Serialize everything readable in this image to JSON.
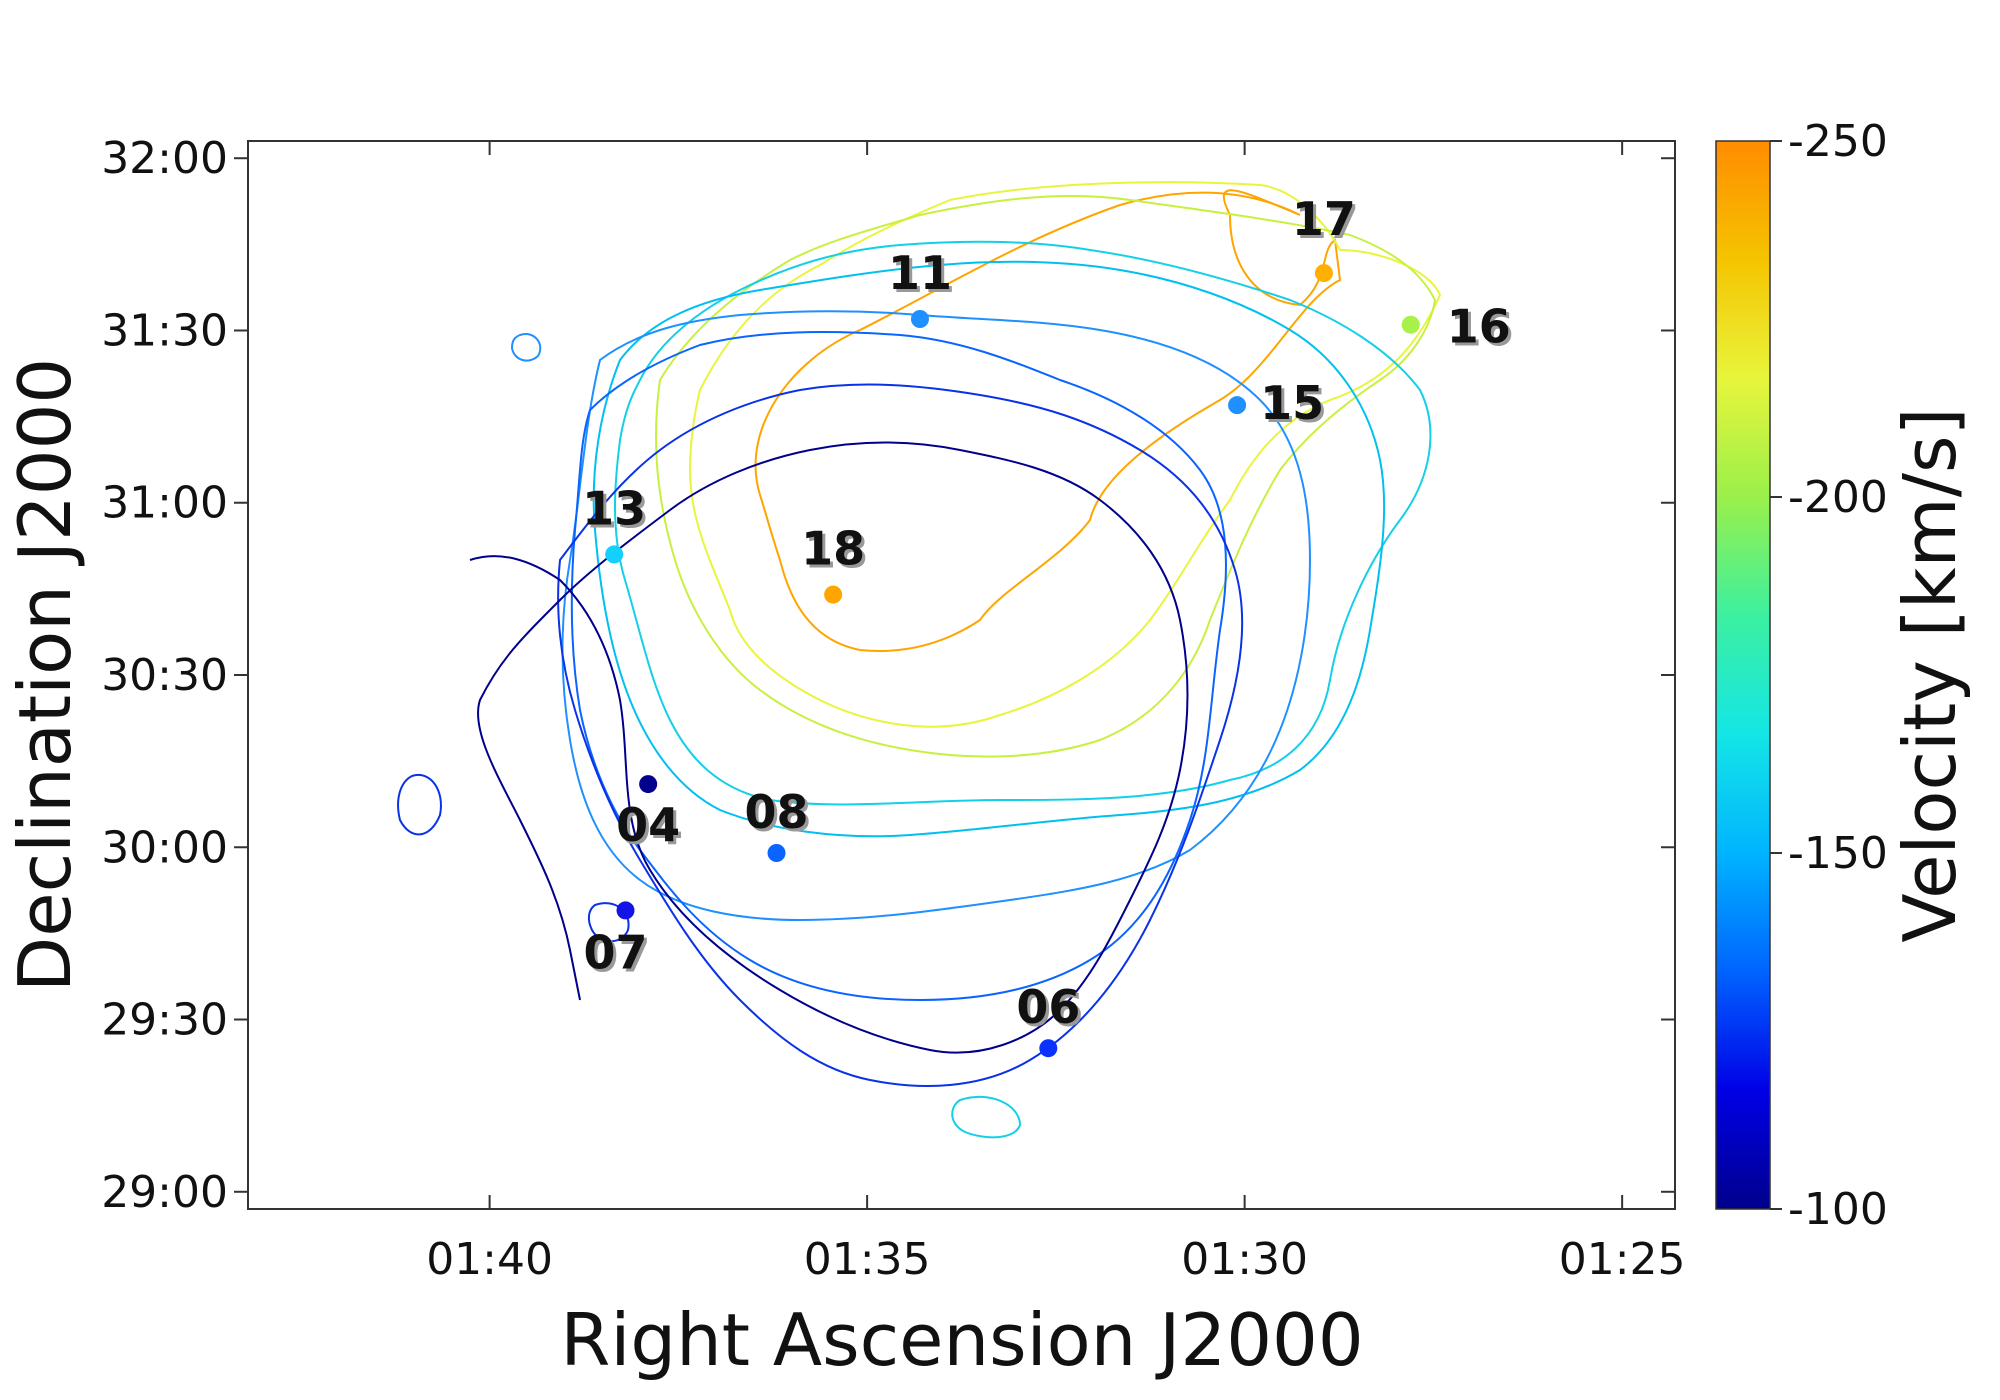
{
  "chart_data": {
    "type": "contour_map",
    "xlabel": "Right Ascension J2000",
    "ylabel": "Declination J2000",
    "x_ticks": [
      "01:40",
      "01:35",
      "01:30",
      "01:25"
    ],
    "x_tick_minutes": [
      100,
      95,
      90,
      85
    ],
    "xlim_minutes": [
      103.2,
      84.3
    ],
    "y_ticks": [
      "32:00",
      "31:30",
      "31:00",
      "30:30",
      "30:00",
      "29:30",
      "29:00"
    ],
    "y_tick_arcmin": [
      1920,
      1890,
      1860,
      1830,
      1800,
      1770,
      1740
    ],
    "ylim_arcmin": [
      1737,
      1923
    ],
    "colorbar": {
      "label": "Velocity [km/s]",
      "ticks": [
        "-250",
        "-200",
        "-150",
        "-100"
      ],
      "tick_values": [
        -250,
        -200,
        -150,
        -100
      ],
      "range": [
        -250,
        -100
      ],
      "colors": [
        "#FF8C00",
        "#F5C400",
        "#E8F53C",
        "#9AF04A",
        "#3CF0A0",
        "#14E6E6",
        "#00B4FF",
        "#0064FF",
        "#0000E6",
        "#00008C"
      ]
    },
    "sources": [
      {
        "label": "17",
        "ra_min": 88.95,
        "dec_arcmin": 1900,
        "velocity": -240,
        "color": "#FFB000"
      },
      {
        "label": "11",
        "ra_min": 94.3,
        "dec_arcmin": 1892,
        "velocity": -160,
        "color": "#1E90FF"
      },
      {
        "label": "16",
        "ra_min": 87.8,
        "dec_arcmin": 1891,
        "velocity": -212,
        "color": "#A8F04A"
      },
      {
        "label": "15",
        "ra_min": 90.1,
        "dec_arcmin": 1877,
        "velocity": -160,
        "color": "#1E90FF"
      },
      {
        "label": "13",
        "ra_min": 98.35,
        "dec_arcmin": 1851,
        "velocity": -170,
        "color": "#14D0FF"
      },
      {
        "label": "18",
        "ra_min": 95.45,
        "dec_arcmin": 1844,
        "velocity": -245,
        "color": "#FFA500"
      },
      {
        "label": "04",
        "ra_min": 97.9,
        "dec_arcmin": 1811,
        "velocity": -100,
        "color": "#00008C"
      },
      {
        "label": "08",
        "ra_min": 96.2,
        "dec_arcmin": 1799,
        "velocity": -150,
        "color": "#0A64FF"
      },
      {
        "label": "07",
        "ra_min": 98.2,
        "dec_arcmin": 1789,
        "velocity": -125,
        "color": "#1414E6"
      },
      {
        "label": "06",
        "ra_min": 92.6,
        "dec_arcmin": 1765,
        "velocity": -135,
        "color": "#0A32FF"
      }
    ]
  }
}
